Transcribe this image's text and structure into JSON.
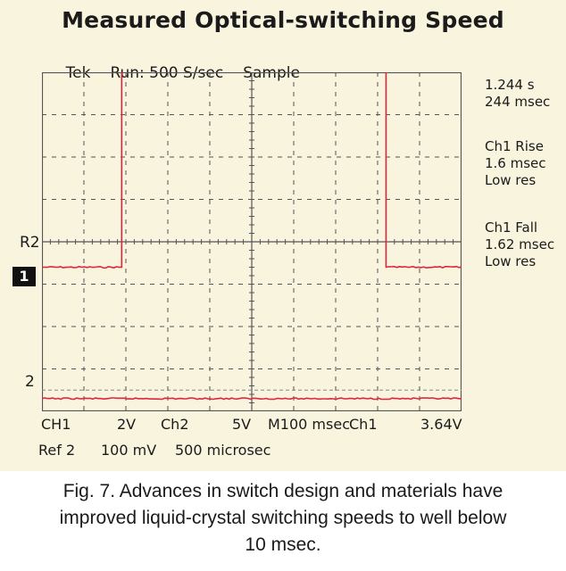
{
  "chart_data": {
    "type": "line",
    "title": "Measured Optical-switching Speed",
    "header": [
      "Tek",
      "Run: 500 S/sec",
      "Sample"
    ],
    "x_divisions": 10,
    "y_divisions": 8,
    "series": [
      {
        "name": "Ch1",
        "color": "#e0263e",
        "x": [
          0,
          1.9,
          1.9,
          8.2,
          8.2,
          10
        ],
        "y": [
          -0.05,
          -0.05,
          5.0,
          5.0,
          -0.05,
          -0.05
        ]
      },
      {
        "name": "Ch2",
        "color": "#e0263e",
        "x": [
          0,
          10
        ],
        "y": [
          -3.15,
          -3.15
        ]
      }
    ],
    "reference_lines_y": [
      -2.95
    ],
    "markers": [
      {
        "label": "1",
        "y": 0
      },
      {
        "label": "2",
        "y": -3.15
      }
    ],
    "ref_label": "R2",
    "readouts": [
      [
        "1.244 s",
        "244 msec"
      ],
      [
        "Ch1 Rise",
        "1.6 msec",
        "Low res"
      ],
      [
        "Ch1 Fall",
        "1.62 msec",
        "Low res"
      ]
    ],
    "footer": {
      "row1": [
        "CH1",
        "2V",
        "Ch2",
        "5V",
        "M100 msec",
        "Ch1",
        "3.64V"
      ],
      "row2": [
        "Ref 2",
        "100 mV",
        "500 microsec"
      ]
    }
  },
  "caption": [
    "Fig. 7. Advances in switch design and materials have",
    "improved liquid-crystal switching speeds to well below",
    "10 msec."
  ],
  "colors": {
    "panel": "#f8f4de",
    "trace": "#e0263e",
    "grid": "#555555",
    "text": "#1b1b1b"
  }
}
